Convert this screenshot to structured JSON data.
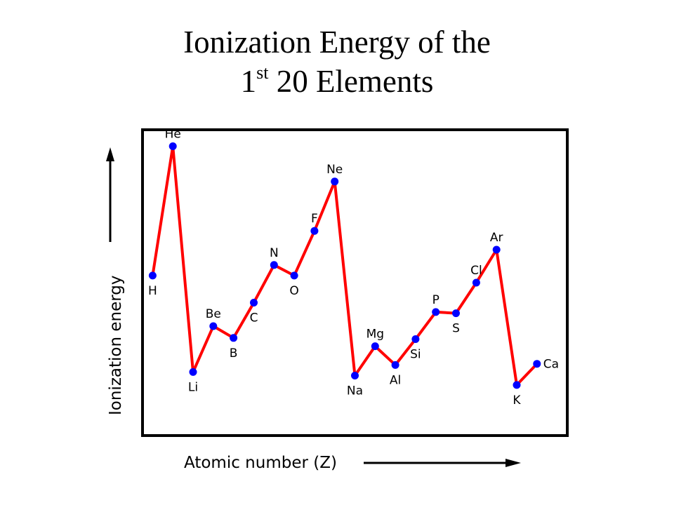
{
  "title": {
    "line1": "Ionization Energy of the",
    "line2_prefix": "1",
    "line2_sup": "st",
    "line2_suffix": " 20 Elements"
  },
  "chart_data": {
    "type": "line",
    "title": "Ionization Energy of the 1st 20 Elements",
    "xlabel": "Atomic number (Z)",
    "ylabel": "Ionization energy",
    "xlim": [
      0.5,
      21.5
    ],
    "ylim": [
      0,
      26
    ],
    "grid": false,
    "line_color": "#ff0000",
    "marker_color": "#0000ff",
    "series": [
      {
        "x": [
          1,
          2,
          3,
          4,
          5,
          6,
          7,
          8,
          9,
          10,
          11,
          12,
          13,
          14,
          15,
          16,
          17,
          18,
          19,
          20
        ],
        "labels": [
          "H",
          "He",
          "Li",
          "Be",
          "B",
          "C",
          "N",
          "O",
          "F",
          "Ne",
          "Na",
          "Mg",
          "Al",
          "Si",
          "P",
          "S",
          "Cl",
          "Ar",
          "K",
          "Ca"
        ],
        "values": [
          13.6,
          24.6,
          5.4,
          9.3,
          8.3,
          11.3,
          14.5,
          13.6,
          17.4,
          21.6,
          5.1,
          7.6,
          6.0,
          8.2,
          10.5,
          10.4,
          13.0,
          15.8,
          4.3,
          6.1
        ]
      }
    ]
  }
}
